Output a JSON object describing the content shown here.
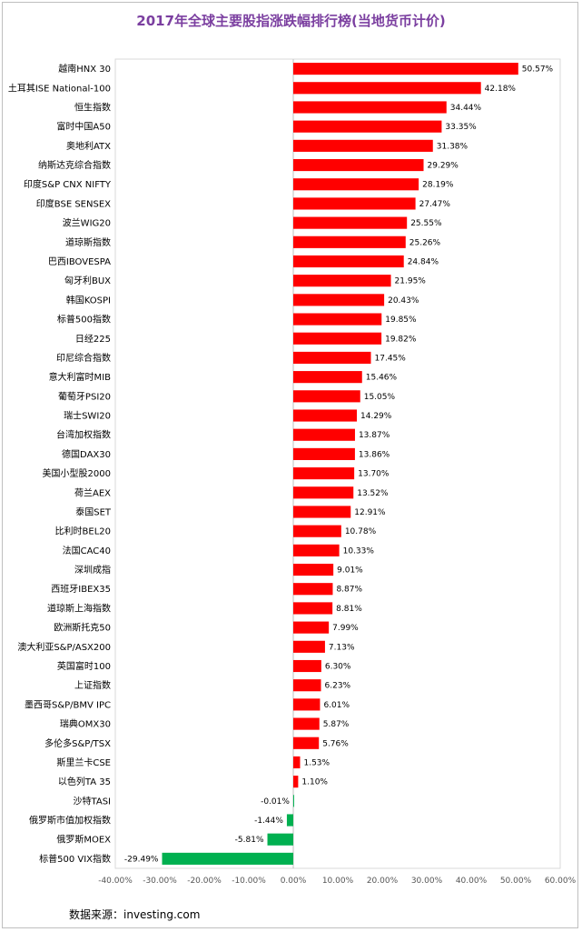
{
  "chart_data": {
    "type": "bar",
    "orientation": "horizontal",
    "title": "2017年全球主要股指涨跌幅排行榜(当地货币计价)",
    "source": "数据来源：investing.com",
    "xlim": [
      -40,
      60
    ],
    "xticks": [
      "-40.00%",
      "-30.00%",
      "-20.00%",
      "-10.00%",
      "0.00%",
      "10.00%",
      "20.00%",
      "30.00%",
      "40.00%",
      "50.00%",
      "60.00%"
    ],
    "grid": false,
    "legend": "none",
    "colors": {
      "positive": "#ff0000",
      "negative": "#00b050"
    },
    "categories": [
      "越南HNX 30",
      "土耳其ISE National-100",
      "恒生指数",
      "富时中国A50",
      "奥地利ATX",
      "纳斯达克综合指数",
      "印度S&P CNX NIFTY",
      "印度BSE SENSEX",
      "波兰WIG20",
      "道琼斯指数",
      "巴西IBOVESPA",
      "匈牙利BUX",
      "韩国KOSPI",
      "标普500指数",
      "日经225",
      "印尼综合指数",
      "意大利富时MIB",
      "葡萄牙PSI20",
      "瑞士SWI20",
      "台湾加权指数",
      "德国DAX30",
      "美国小型股2000",
      "荷兰AEX",
      "泰国SET",
      "比利时BEL20",
      "法国CAC40",
      "深圳成指",
      "西班牙IBEX35",
      "道琼斯上海指数",
      "欧洲斯托克50",
      "澳大利亚S&P/ASX200",
      "英国富时100",
      "上证指数",
      "墨西哥S&P/BMV IPC",
      "瑞典OMX30",
      "多伦多S&P/TSX",
      "斯里兰卡CSE",
      "以色列TA 35",
      "沙特TASI",
      "俄罗斯市值加权指数",
      "俄罗斯MOEX",
      "标普500 VIX指数"
    ],
    "values": [
      50.57,
      42.18,
      34.44,
      33.35,
      31.38,
      29.29,
      28.19,
      27.47,
      25.55,
      25.26,
      24.84,
      21.95,
      20.43,
      19.85,
      19.82,
      17.45,
      15.46,
      15.05,
      14.29,
      13.87,
      13.86,
      13.7,
      13.52,
      12.91,
      10.78,
      10.33,
      9.01,
      8.87,
      8.81,
      7.99,
      7.13,
      6.3,
      6.23,
      6.01,
      5.87,
      5.76,
      1.53,
      1.1,
      -0.01,
      -1.44,
      -5.81,
      -29.49
    ],
    "labels": [
      "50.57%",
      "42.18%",
      "34.44%",
      "33.35%",
      "31.38%",
      "29.29%",
      "28.19%",
      "27.47%",
      "25.55%",
      "25.26%",
      "24.84%",
      "21.95%",
      "20.43%",
      "19.85%",
      "19.82%",
      "17.45%",
      "15.46%",
      "15.05%",
      "14.29%",
      "13.87%",
      "13.86%",
      "13.70%",
      "13.52%",
      "12.91%",
      "10.78%",
      "10.33%",
      "9.01%",
      "8.87%",
      "8.81%",
      "7.99%",
      "7.13%",
      "6.30%",
      "6.23%",
      "6.01%",
      "5.87%",
      "5.76%",
      "1.53%",
      "1.10%",
      "-0.01%",
      "-1.44%",
      "-5.81%",
      "-29.49%"
    ]
  }
}
